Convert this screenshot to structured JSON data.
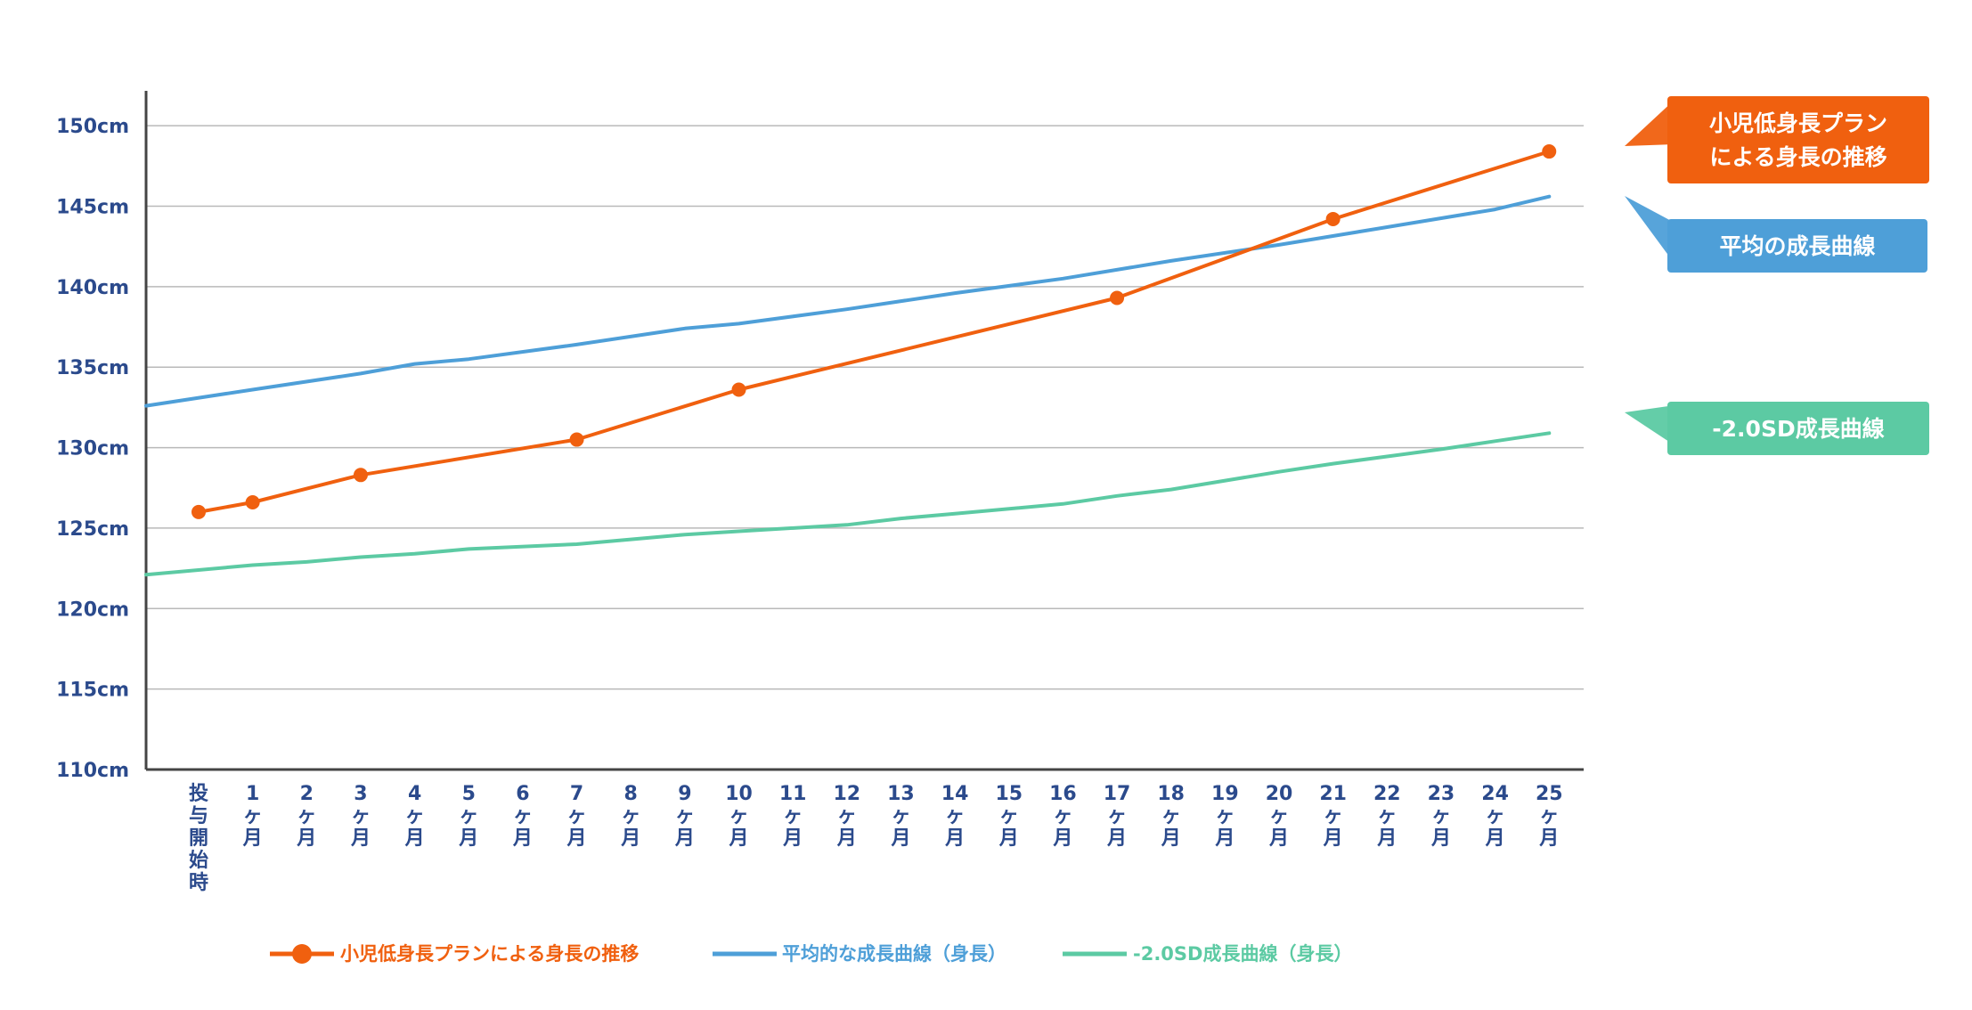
{
  "chart_data": {
    "type": "line",
    "y_ticks": [
      "110cm",
      "115cm",
      "120cm",
      "125cm",
      "130cm",
      "135cm",
      "140cm",
      "145cm",
      "150cm"
    ],
    "ylim": [
      110,
      152
    ],
    "x_labels": [
      [
        "投",
        "与",
        "開",
        "始",
        "時"
      ],
      [
        "1",
        "ヶ",
        "月"
      ],
      [
        "2",
        "ヶ",
        "月"
      ],
      [
        "3",
        "ヶ",
        "月"
      ],
      [
        "4",
        "ヶ",
        "月"
      ],
      [
        "5",
        "ヶ",
        "月"
      ],
      [
        "6",
        "ヶ",
        "月"
      ],
      [
        "7",
        "ヶ",
        "月"
      ],
      [
        "8",
        "ヶ",
        "月"
      ],
      [
        "9",
        "ヶ",
        "月"
      ],
      [
        "10",
        "ヶ",
        "月"
      ],
      [
        "11",
        "ヶ",
        "月"
      ],
      [
        "12",
        "ヶ",
        "月"
      ],
      [
        "13",
        "ヶ",
        "月"
      ],
      [
        "14",
        "ヶ",
        "月"
      ],
      [
        "15",
        "ヶ",
        "月"
      ],
      [
        "16",
        "ヶ",
        "月"
      ],
      [
        "17",
        "ヶ",
        "月"
      ],
      [
        "18",
        "ヶ",
        "月"
      ],
      [
        "19",
        "ヶ",
        "月"
      ],
      [
        "20",
        "ヶ",
        "月"
      ],
      [
        "21",
        "ヶ",
        "月"
      ],
      [
        "22",
        "ヶ",
        "月"
      ],
      [
        "23",
        "ヶ",
        "月"
      ],
      [
        "24",
        "ヶ",
        "月"
      ],
      [
        "25",
        "ヶ",
        "月"
      ]
    ],
    "series": [
      {
        "name": "小児低身長プランによる身長の推移",
        "color": "#f0600f",
        "markers": true,
        "points": [
          [
            0,
            126.0
          ],
          [
            1,
            126.6
          ],
          [
            3,
            128.3
          ],
          [
            7,
            130.5
          ],
          [
            10,
            133.6
          ],
          [
            17,
            139.3
          ],
          [
            21,
            144.2
          ],
          [
            25,
            148.4
          ]
        ]
      },
      {
        "name": "平均的な成長曲線（身長）",
        "color": "#4e9fd8",
        "markers": false,
        "points": [
          [
            -1,
            132.6
          ],
          [
            1,
            133.6
          ],
          [
            3,
            134.6
          ],
          [
            4,
            135.2
          ],
          [
            5,
            135.5
          ],
          [
            7,
            136.4
          ],
          [
            9,
            137.4
          ],
          [
            10,
            137.7
          ],
          [
            12,
            138.6
          ],
          [
            14,
            139.6
          ],
          [
            16,
            140.5
          ],
          [
            18,
            141.6
          ],
          [
            20,
            142.6
          ],
          [
            22,
            143.7
          ],
          [
            24,
            144.8
          ],
          [
            25,
            145.6
          ]
        ]
      },
      {
        "name": "-2.0SD成長曲線（身長）",
        "color": "#5ccaa3",
        "markers": false,
        "points": [
          [
            -1,
            122.1
          ],
          [
            1,
            122.7
          ],
          [
            2,
            122.9
          ],
          [
            3,
            123.2
          ],
          [
            4,
            123.4
          ],
          [
            5,
            123.7
          ],
          [
            7,
            124.0
          ],
          [
            8,
            124.3
          ],
          [
            9,
            124.6
          ],
          [
            10,
            124.8
          ],
          [
            12,
            125.2
          ],
          [
            13,
            125.6
          ],
          [
            14,
            125.9
          ],
          [
            16,
            126.5
          ],
          [
            17,
            127.0
          ],
          [
            18,
            127.4
          ],
          [
            20,
            128.5
          ],
          [
            21,
            129.0
          ],
          [
            23,
            129.9
          ],
          [
            24,
            130.4
          ],
          [
            25,
            130.9
          ]
        ]
      }
    ],
    "callouts": [
      {
        "lines": [
          "小児低身長プラン",
          "による身長の推移"
        ],
        "color": "#f0600f"
      },
      {
        "lines": [
          "平均の成長曲線"
        ],
        "color": "#4e9fd8"
      },
      {
        "lines": [
          "-2.0SD成長曲線"
        ],
        "color": "#5ccaa3"
      }
    ],
    "legend": [
      {
        "label": "小児低身長プランによる身長の推移",
        "color": "#f0600f",
        "marker": true
      },
      {
        "label": "平均的な成長曲線（身長）",
        "color": "#4e9fd8",
        "marker": false
      },
      {
        "label": "-2.0SD成長曲線（身長）",
        "color": "#5ccaa3",
        "marker": false
      }
    ],
    "grid": true
  }
}
